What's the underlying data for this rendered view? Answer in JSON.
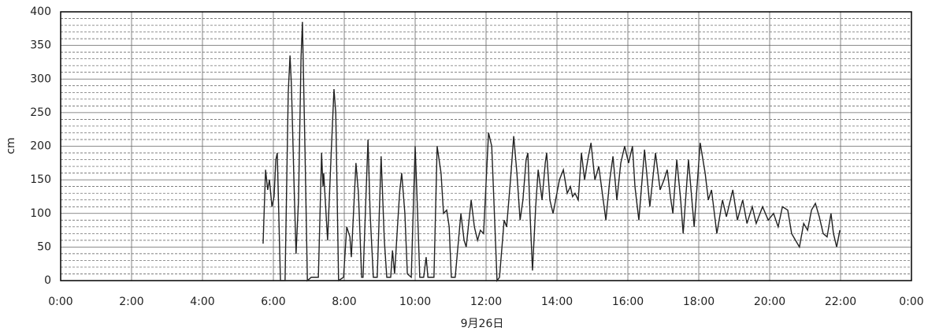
{
  "chart_data": {
    "type": "line",
    "y_label": "cm",
    "x_label": "9月26日",
    "x": [
      5.71,
      5.78,
      5.84,
      5.89,
      5.96,
      6.02,
      6.07,
      6.11,
      6.2,
      6.33,
      6.42,
      6.47,
      6.51,
      6.58,
      6.64,
      6.71,
      6.78,
      6.82,
      6.89,
      6.96,
      7.07,
      7.27,
      7.36,
      7.4,
      7.42,
      7.53,
      7.64,
      7.71,
      7.76,
      7.84,
      7.98,
      8.07,
      8.16,
      8.2,
      8.33,
      8.4,
      8.49,
      8.53,
      8.67,
      8.73,
      8.82,
      8.93,
      9.04,
      9.13,
      9.2,
      9.31,
      9.36,
      9.42,
      9.56,
      9.62,
      9.71,
      9.78,
      9.89,
      10.0,
      10.07,
      10.13,
      10.24,
      10.31,
      10.36,
      10.53,
      10.62,
      10.73,
      10.8,
      10.89,
      10.96,
      11.02,
      11.13,
      11.29,
      11.38,
      11.44,
      11.58,
      11.67,
      11.76,
      11.84,
      11.93,
      12.07,
      12.16,
      12.31,
      12.38,
      12.51,
      12.58,
      12.69,
      12.78,
      12.87,
      12.96,
      13.04,
      13.13,
      13.18,
      13.24,
      13.31,
      13.4,
      13.47,
      13.58,
      13.67,
      13.71,
      13.8,
      13.89,
      14.07,
      14.18,
      14.29,
      14.38,
      14.44,
      14.51,
      14.6,
      14.69,
      14.78,
      14.87,
      14.96,
      15.07,
      15.18,
      15.38,
      15.49,
      15.58,
      15.69,
      15.8,
      15.91,
      16.02,
      16.13,
      16.2,
      16.31,
      16.47,
      16.62,
      16.78,
      16.91,
      17.02,
      17.11,
      17.2,
      17.27,
      17.38,
      17.49,
      17.56,
      17.71,
      17.87,
      18.04,
      18.18,
      18.27,
      18.36,
      18.51,
      18.67,
      18.78,
      18.96,
      19.09,
      19.24,
      19.36,
      19.51,
      19.62,
      19.8,
      19.96,
      20.11,
      20.24,
      20.36,
      20.51,
      20.62,
      20.73,
      20.84,
      20.96,
      21.07,
      21.18,
      21.29,
      21.4,
      21.51,
      21.62,
      21.73,
      21.8,
      21.89,
      21.98
    ],
    "series": [
      {
        "color": "#222222",
        "values": [
          55,
          165,
          135,
          150,
          110,
          125,
          180,
          190,
          0,
          0,
          280,
          335,
          290,
          150,
          40,
          120,
          330,
          385,
          200,
          0,
          5,
          5,
          190,
          140,
          160,
          60,
          200,
          285,
          250,
          0,
          5,
          80,
          65,
          35,
          175,
          130,
          5,
          5,
          210,
          100,
          5,
          5,
          185,
          60,
          5,
          5,
          45,
          10,
          130,
          160,
          100,
          10,
          5,
          200,
          100,
          5,
          5,
          35,
          5,
          5,
          200,
          160,
          100,
          105,
          80,
          5,
          5,
          100,
          60,
          50,
          120,
          80,
          60,
          75,
          70,
          220,
          200,
          0,
          5,
          90,
          80,
          150,
          215,
          160,
          90,
          120,
          180,
          190,
          100,
          15,
          110,
          165,
          120,
          175,
          190,
          120,
          100,
          150,
          165,
          130,
          140,
          125,
          130,
          120,
          190,
          150,
          180,
          205,
          150,
          170,
          90,
          150,
          185,
          120,
          175,
          200,
          175,
          200,
          140,
          90,
          195,
          110,
          190,
          135,
          150,
          165,
          125,
          100,
          180,
          120,
          70,
          180,
          80,
          205,
          160,
          120,
          135,
          70,
          120,
          95,
          135,
          90,
          120,
          85,
          110,
          85,
          110,
          90,
          100,
          80,
          110,
          105,
          70,
          60,
          50,
          85,
          75,
          105,
          115,
          95,
          70,
          65,
          100,
          70,
          50,
          75
        ]
      }
    ],
    "xlim": [
      0,
      24
    ],
    "ylim": [
      0,
      400
    ],
    "xticks": [
      {
        "value": 0,
        "label": "0:00"
      },
      {
        "value": 2,
        "label": "2:00"
      },
      {
        "value": 4,
        "label": "4:00"
      },
      {
        "value": 6,
        "label": "6:00"
      },
      {
        "value": 8,
        "label": "8:00"
      },
      {
        "value": 10,
        "label": "10:00"
      },
      {
        "value": 12,
        "label": "12:00"
      },
      {
        "value": 14,
        "label": "14:00"
      },
      {
        "value": 16,
        "label": "16:00"
      },
      {
        "value": 18,
        "label": "18:00"
      },
      {
        "value": 20,
        "label": "20:00"
      },
      {
        "value": 22,
        "label": "22:00"
      },
      {
        "value": 24,
        "label": "0:00"
      }
    ],
    "yticks": [
      0,
      50,
      100,
      150,
      200,
      250,
      300,
      350,
      400
    ],
    "grid": true
  }
}
